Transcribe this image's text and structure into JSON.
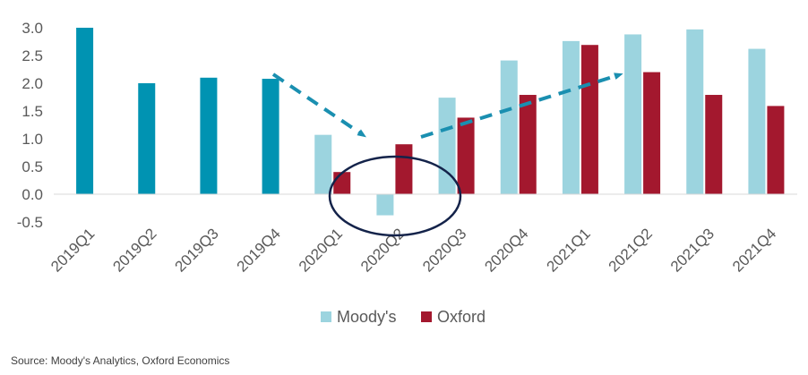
{
  "chart_data": {
    "type": "bar",
    "categories": [
      "2019Q1",
      "2019Q2",
      "2019Q3",
      "2019Q4",
      "2020Q1",
      "2020Q2",
      "2020Q3",
      "2020Q4",
      "2021Q1",
      "2021Q2",
      "2021Q3",
      "2021Q4"
    ],
    "series": [
      {
        "name": "",
        "color": "#0093b2",
        "values": [
          3.0,
          2.0,
          2.1,
          2.08,
          null,
          null,
          null,
          null,
          null,
          null,
          null,
          null
        ]
      },
      {
        "name": "Moody's",
        "color": "#9cd4df",
        "values": [
          null,
          null,
          null,
          null,
          1.07,
          -0.38,
          1.74,
          2.41,
          2.76,
          2.88,
          2.97,
          2.62
        ]
      },
      {
        "name": "Oxford",
        "color": "#a3182e",
        "values": [
          null,
          null,
          null,
          null,
          0.4,
          0.9,
          1.38,
          1.79,
          2.69,
          2.2,
          1.79,
          1.59
        ]
      }
    ],
    "yticks": [
      "3.0",
      "2.5",
      "2.0",
      "1.5",
      "1.0",
      "0.5",
      "0.0",
      "-0.5"
    ],
    "ylim": [
      -0.5,
      3.0
    ],
    "legend": {
      "position": "bottom",
      "items": [
        "Moody's",
        "Oxford"
      ]
    },
    "annotations": {
      "arrow_color": "#1a8fb0",
      "ellipse_color": "#14234a"
    },
    "source": "Source: Moody's Analytics, Oxford Economics"
  }
}
